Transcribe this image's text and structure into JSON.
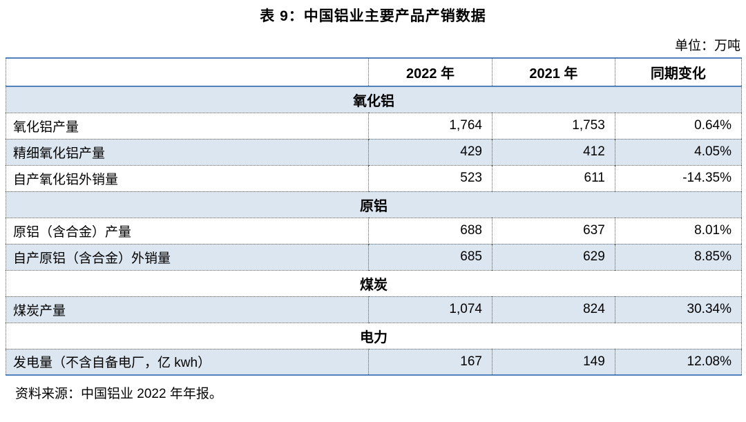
{
  "title": "表 9：中国铝业主要产品产销数据",
  "unit_note": "单位：万吨",
  "source_note": "资料来源：中国铝业 2022 年年报。",
  "colors": {
    "accent_border": "#4f81bd",
    "band_fill": "#dce6f1",
    "gridline": "#595959",
    "text": "#000000"
  },
  "table": {
    "columns": [
      "",
      "2022 年",
      "2021 年",
      "同期变化"
    ],
    "sections": [
      {
        "name": "氧化铝",
        "rows": [
          {
            "label": "氧化铝产量",
            "v2022": "1,764",
            "v2021": "1,753",
            "change": "0.64%"
          },
          {
            "label": "精细氧化铝产量",
            "v2022": "429",
            "v2021": "412",
            "change": "4.05%"
          },
          {
            "label": "自产氧化铝外销量",
            "v2022": "523",
            "v2021": "611",
            "change": "-14.35%"
          }
        ]
      },
      {
        "name": "原铝",
        "rows": [
          {
            "label": "原铝（含合金）产量",
            "v2022": "688",
            "v2021": "637",
            "change": "8.01%"
          },
          {
            "label": "自产原铝（含合金）外销量",
            "v2022": "685",
            "v2021": "629",
            "change": "8.85%"
          }
        ]
      },
      {
        "name": "煤炭",
        "rows": [
          {
            "label": "煤炭产量",
            "v2022": "1,074",
            "v2021": "824",
            "change": "30.34%"
          }
        ]
      },
      {
        "name": "电力",
        "rows": [
          {
            "label": "发电量（不含自备电厂，亿 kwh）",
            "v2022": "167",
            "v2021": "149",
            "change": "12.08%"
          }
        ]
      }
    ]
  }
}
